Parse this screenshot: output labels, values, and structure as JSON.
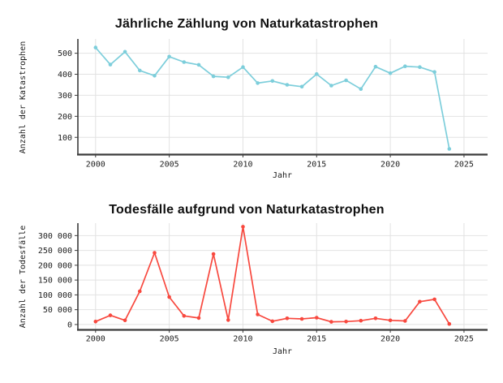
{
  "figure": {
    "background": "#ffffff",
    "grid_color": "#e2e2e2",
    "spine_color": "#3b3b3b",
    "text_color": "#1c1c1c"
  },
  "chart_data": [
    {
      "type": "line",
      "title": "Jährliche Zählung von Naturkatastrophen",
      "xlabel": "Jahr",
      "ylabel": "Anzahl der Katastrophen",
      "line_color": "#7dcedb",
      "marker": "circle",
      "grid": true,
      "legend": false,
      "x": [
        2000,
        2001,
        2002,
        2003,
        2004,
        2005,
        2006,
        2007,
        2008,
        2009,
        2010,
        2011,
        2012,
        2013,
        2014,
        2015,
        2016,
        2017,
        2018,
        2019,
        2020,
        2021,
        2022,
        2023,
        2024
      ],
      "values": [
        527,
        446,
        507,
        418,
        393,
        484,
        458,
        445,
        390,
        386,
        434,
        358,
        368,
        350,
        341,
        401,
        346,
        371,
        330,
        436,
        405,
        438,
        434,
        411,
        45
      ],
      "xlim": [
        1998.8,
        2026.6
      ],
      "ylim": [
        18,
        568
      ],
      "xticks": [
        2000,
        2005,
        2010,
        2015,
        2020,
        2025
      ],
      "xtick_labels": [
        "2000",
        "2005",
        "2010",
        "2015",
        "2020",
        "2025"
      ],
      "yticks": [
        100,
        200,
        300,
        400,
        500
      ],
      "ytick_labels": [
        "100",
        "200",
        "300",
        "400",
        "500"
      ]
    },
    {
      "type": "line",
      "title": "Todesfälle aufgrund von Naturkatastrophen",
      "xlabel": "Jahr",
      "ylabel": "Anzahl der Todesfälle",
      "line_color": "#f8483e",
      "marker": "circle",
      "grid": true,
      "legend": false,
      "x": [
        2000,
        2001,
        2002,
        2003,
        2004,
        2005,
        2006,
        2007,
        2008,
        2009,
        2010,
        2011,
        2012,
        2013,
        2014,
        2015,
        2016,
        2017,
        2018,
        2019,
        2020,
        2021,
        2022,
        2023,
        2024
      ],
      "values": [
        10000,
        31000,
        14000,
        112000,
        242000,
        93000,
        29000,
        22000,
        238000,
        15000,
        330000,
        34000,
        11000,
        21000,
        19000,
        23000,
        9000,
        10000,
        13000,
        21000,
        14000,
        12000,
        77000,
        85000,
        2000
      ],
      "xlim": [
        1998.8,
        2026.6
      ],
      "ylim": [
        -18000,
        342000
      ],
      "xticks": [
        2000,
        2005,
        2010,
        2015,
        2020,
        2025
      ],
      "xtick_labels": [
        "2000",
        "2005",
        "2010",
        "2015",
        "2020",
        "2025"
      ],
      "yticks": [
        0,
        50000,
        100000,
        150000,
        200000,
        250000,
        300000
      ],
      "ytick_labels": [
        "0",
        "50 000",
        "100 000",
        "150 000",
        "200 000",
        "250 000",
        "300 000"
      ]
    }
  ]
}
